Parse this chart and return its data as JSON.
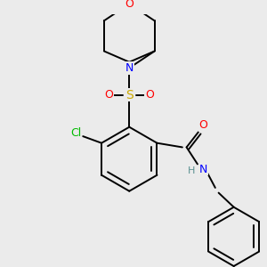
{
  "bg_color": "#ebebeb",
  "atom_colors": {
    "C": "#000000",
    "N": "#0000ff",
    "O": "#ff0000",
    "S": "#ccaa00",
    "Cl": "#00bb00",
    "H": "#5a9090"
  },
  "bond_color": "#000000",
  "figsize": [
    3.0,
    3.0
  ],
  "dpi": 100
}
